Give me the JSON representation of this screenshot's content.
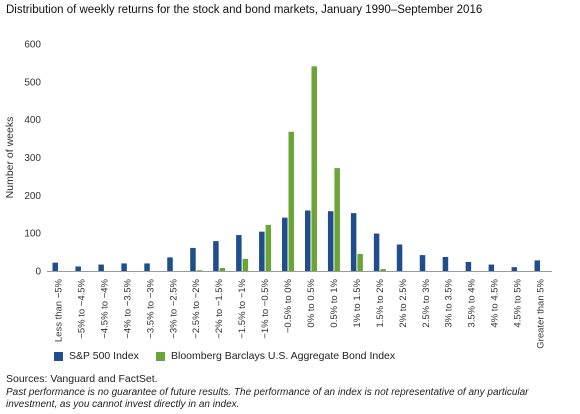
{
  "title": "Distribution of weekly returns for the stock and bond markets, January 1990–September 2016",
  "legend": [
    {
      "label": "S&P 500 Index",
      "color": "#1f4e8c"
    },
    {
      "label": "Bloomberg Barclays U.S. Aggregate Bond Index",
      "color": "#6aa535"
    }
  ],
  "sources": "Sources: Vanguard and FactSet.",
  "disclaimer": "Past performance is no guarantee of future results. The performance of an index is not representative of any particular investment, as you cannot invest directly in an index.",
  "chart_data": {
    "type": "bar",
    "title": "Distribution of weekly returns for the stock and bond markets, January 1990–September 2016",
    "xlabel": "",
    "ylabel": "Number of weeks",
    "ylim": [
      0,
      600
    ],
    "yticks": [
      "0",
      "100",
      "200",
      "300",
      "400",
      "500",
      "600"
    ],
    "grid": false,
    "legend_position": "bottom-left",
    "categories": [
      "Less than −5%",
      "−5% to −4.5%",
      "−4.5% to −4%",
      "−4% to −3.5%",
      "−3.5% to −3%",
      "−3% to −2.5%",
      "−2.5% to −2%",
      "−2% to −1.5%",
      "−1.5% to −1%",
      "−1% to −0.5%",
      "−0.5% to 0%",
      "0% to 0.5%",
      "0.5% to 1%",
      "1% to 1.5%",
      "1.5% to 2%",
      "2% to 2.5%",
      "2.5% to 3%",
      "3% to 3.5%",
      "3.5% to 4%",
      "4% to 4.5%",
      "4.5% to 5%",
      "Greater than 5%"
    ],
    "series": [
      {
        "name": "S&P 500 Index",
        "color": "#1f4e8c",
        "values": [
          22,
          12,
          17,
          20,
          20,
          36,
          61,
          79,
          95,
          104,
          141,
          160,
          158,
          153,
          99,
          70,
          42,
          37,
          24,
          17,
          10,
          28
        ]
      },
      {
        "name": "Bloomberg Barclays U.S. Aggregate Bond Index",
        "color": "#6aa535",
        "values": [
          0,
          0,
          0,
          0,
          0,
          0,
          2,
          8,
          32,
          122,
          368,
          541,
          272,
          45,
          5,
          0,
          0,
          0,
          0,
          0,
          0,
          0
        ]
      }
    ]
  }
}
